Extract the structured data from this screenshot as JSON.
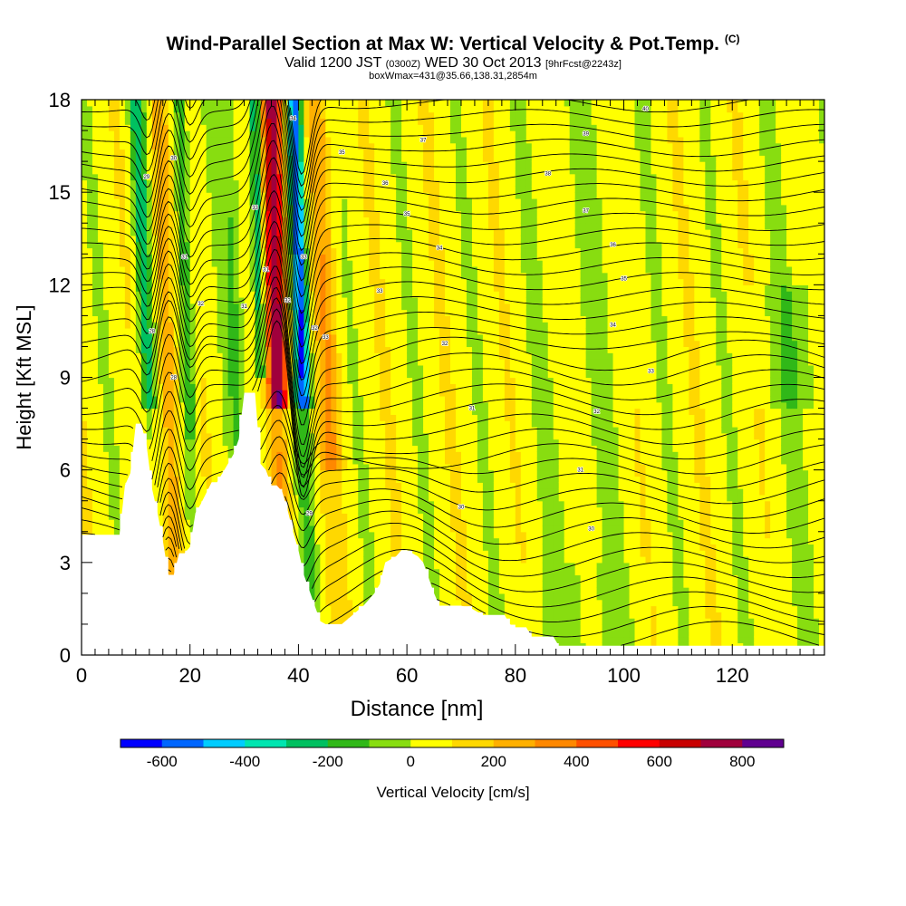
{
  "chart_data": {
    "type": "heatmap",
    "title": "Wind-Parallel Section at Max W: Vertical Velocity & Pot.Temp.",
    "title_mark": "(C)",
    "subtitle_main_a": "Valid 1200 JST",
    "subtitle_small_a": "(0300Z)",
    "subtitle_main_b": "WED 30 Oct 2013",
    "subtitle_small_b": "[9hrFcst@2243z]",
    "subtitle2": "boxWmax=431@35.66,138.31,2854m",
    "xlabel": "Distance [nm]",
    "ylabel": "Height [Kft MSL]",
    "xlim": [
      0,
      137
    ],
    "ylim": [
      0,
      18
    ],
    "x_ticks": [
      0,
      20,
      40,
      60,
      80,
      100,
      120
    ],
    "y_ticks": [
      0,
      3,
      6,
      9,
      12,
      15,
      18
    ],
    "grid": false,
    "colorbar": {
      "label": "Vertical Velocity [cm/s]",
      "tick_labels": [
        "-600",
        "-400",
        "-200",
        "0",
        "200",
        "400",
        "600",
        "800"
      ],
      "tick_values": [
        -600,
        -400,
        -200,
        0,
        200,
        400,
        600,
        800
      ],
      "bins": [
        -700,
        -600,
        -500,
        -400,
        -300,
        -200,
        -100,
        0,
        100,
        200,
        300,
        400,
        500,
        600,
        700,
        800,
        900
      ],
      "colors": [
        "#0000ff",
        "#0066ff",
        "#00ccff",
        "#00e5b0",
        "#00c060",
        "#30b818",
        "#88dd10",
        "#ffff00",
        "#ffd800",
        "#ffb000",
        "#ff8800",
        "#ff5000",
        "#ff0000",
        "#c80000",
        "#a0003c",
        "#600090"
      ]
    },
    "terrain_kft": [
      [
        0,
        3.9
      ],
      [
        2,
        3.9
      ],
      [
        4,
        3.9
      ],
      [
        6,
        3.9
      ],
      [
        7,
        3.9
      ],
      [
        8,
        5.5
      ],
      [
        9,
        5.9
      ],
      [
        10,
        7.5
      ],
      [
        11,
        7.5
      ],
      [
        12,
        6.8
      ],
      [
        13,
        5.4
      ],
      [
        14,
        4.6
      ],
      [
        15,
        3.7
      ],
      [
        16,
        2.6
      ],
      [
        17,
        2.6
      ],
      [
        18,
        3.3
      ],
      [
        19,
        3.3
      ],
      [
        20,
        3.5
      ],
      [
        21,
        4.6
      ],
      [
        22,
        4.9
      ],
      [
        24,
        5.6
      ],
      [
        25,
        5.6
      ],
      [
        26,
        5.9
      ],
      [
        27,
        6.2
      ],
      [
        28,
        6.5
      ],
      [
        29,
        7.0
      ],
      [
        30,
        8.5
      ],
      [
        32,
        8.5
      ],
      [
        33,
        6.2
      ],
      [
        34,
        6.0
      ],
      [
        35,
        5.5
      ],
      [
        36,
        5.5
      ],
      [
        37,
        5.3
      ],
      [
        38,
        4.7
      ],
      [
        39,
        4.0
      ],
      [
        40,
        3.4
      ],
      [
        41,
        2.6
      ],
      [
        42,
        2.1
      ],
      [
        43,
        1.6
      ],
      [
        44,
        1.1
      ],
      [
        45,
        1.0
      ],
      [
        46,
        1.0
      ],
      [
        47,
        1.0
      ],
      [
        48,
        1.0
      ],
      [
        50,
        1.3
      ],
      [
        52,
        1.6
      ],
      [
        54,
        2.0
      ],
      [
        55,
        2.3
      ],
      [
        56,
        3.0
      ],
      [
        58,
        3.2
      ],
      [
        59,
        3.4
      ],
      [
        60,
        3.4
      ],
      [
        62,
        3.2
      ],
      [
        63,
        3.0
      ],
      [
        64,
        2.5
      ],
      [
        65,
        2.0
      ],
      [
        66,
        1.6
      ],
      [
        68,
        1.6
      ],
      [
        70,
        1.6
      ],
      [
        72,
        1.5
      ],
      [
        74,
        1.3
      ],
      [
        76,
        1.3
      ],
      [
        78,
        1.3
      ],
      [
        79,
        1.0
      ],
      [
        80,
        0.9
      ],
      [
        82,
        0.9
      ],
      [
        83,
        0.6
      ],
      [
        86,
        0.6
      ],
      [
        87,
        0.6
      ],
      [
        88,
        0.3
      ],
      [
        92,
        0.3
      ],
      [
        137,
        0.3
      ]
    ],
    "theta_labels": [
      {
        "x": 12,
        "y": 15.5,
        "text": "29"
      },
      {
        "x": 17,
        "y": 16.1,
        "text": "30"
      },
      {
        "x": 19,
        "y": 12.9,
        "text": "31"
      },
      {
        "x": 22,
        "y": 11.4,
        "text": "32"
      },
      {
        "x": 32,
        "y": 14.5,
        "text": "33"
      },
      {
        "x": 39,
        "y": 17.4,
        "text": "34"
      },
      {
        "x": 48,
        "y": 16.3,
        "text": "35"
      },
      {
        "x": 56,
        "y": 15.3,
        "text": "36"
      },
      {
        "x": 63,
        "y": 16.7,
        "text": "37"
      },
      {
        "x": 86,
        "y": 15.6,
        "text": "38"
      },
      {
        "x": 93,
        "y": 16.9,
        "text": "39"
      },
      {
        "x": 104,
        "y": 17.7,
        "text": "40"
      },
      {
        "x": 60,
        "y": 14.3,
        "text": "35"
      },
      {
        "x": 66,
        "y": 13.2,
        "text": "34"
      },
      {
        "x": 55,
        "y": 11.8,
        "text": "33"
      },
      {
        "x": 67,
        "y": 10.1,
        "text": "32"
      },
      {
        "x": 72,
        "y": 8.0,
        "text": "31"
      },
      {
        "x": 93,
        "y": 14.4,
        "text": "37"
      },
      {
        "x": 98,
        "y": 13.3,
        "text": "36"
      },
      {
        "x": 100,
        "y": 12.2,
        "text": "35"
      },
      {
        "x": 98,
        "y": 10.7,
        "text": "34"
      },
      {
        "x": 105,
        "y": 9.2,
        "text": "33"
      },
      {
        "x": 95,
        "y": 7.9,
        "text": "32"
      },
      {
        "x": 92,
        "y": 6.0,
        "text": "31"
      },
      {
        "x": 70,
        "y": 4.8,
        "text": "30"
      },
      {
        "x": 94,
        "y": 4.1,
        "text": "30"
      },
      {
        "x": 42,
        "y": 4.6,
        "text": "29"
      },
      {
        "x": 34,
        "y": 12.5,
        "text": "31"
      },
      {
        "x": 38,
        "y": 11.5,
        "text": "32"
      },
      {
        "x": 41,
        "y": 12.9,
        "text": "33"
      },
      {
        "x": 43,
        "y": 10.6,
        "text": "32"
      },
      {
        "x": 45,
        "y": 10.3,
        "text": "33"
      },
      {
        "x": 13,
        "y": 10.5,
        "text": "28"
      },
      {
        "x": 17,
        "y": 9.0,
        "text": "28"
      },
      {
        "x": 30,
        "y": 11.3,
        "text": "31"
      }
    ]
  }
}
